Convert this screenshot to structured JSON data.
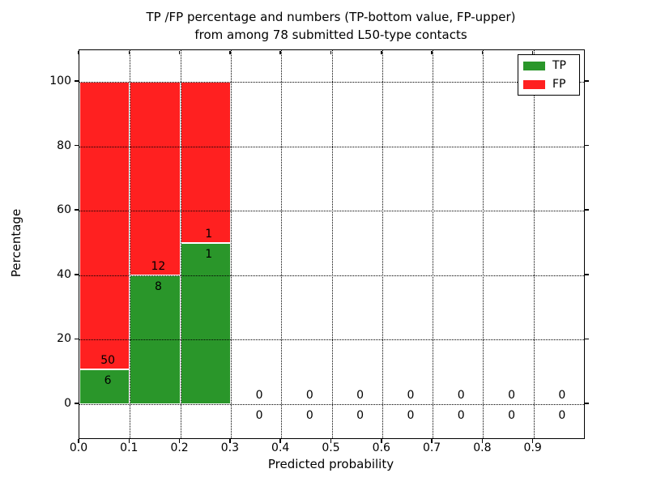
{
  "figure": {
    "title_line1": "TP /FP percentage and numbers (TP-bottom value, FP-upper)",
    "title_line2": "from among 78 submitted L50-type contacts"
  },
  "chart_data": {
    "type": "bar",
    "stacked": true,
    "title": "TP /FP percentage and numbers (TP-bottom value, FP-upper)\nfrom among 78 submitted L50-type contacts",
    "xlabel": "Predicted probability",
    "ylabel": "Percentage",
    "xlim": [
      0.0,
      1.0
    ],
    "ylim": [
      -12,
      110
    ],
    "x_ticks": [
      0.0,
      0.1,
      0.2,
      0.3,
      0.4,
      0.5,
      0.6,
      0.7,
      0.8,
      0.9
    ],
    "x_tick_labels": [
      "0.0",
      "0.1",
      "0.2",
      "0.3",
      "0.4",
      "0.5",
      "0.6",
      "0.7",
      "0.8",
      "0.9"
    ],
    "y_ticks": [
      0,
      20,
      40,
      60,
      80,
      100
    ],
    "y_tick_labels": [
      "0",
      "20",
      "40",
      "60",
      "80",
      "100"
    ],
    "grid": "dotted",
    "grid_color": "#000000",
    "total_contacts": 78,
    "colors": {
      "tp": "#2a962a",
      "fp": "#ff2020"
    },
    "legend": {
      "position": "upper right",
      "entries": [
        {
          "label": "TP",
          "color": "#2a962a"
        },
        {
          "label": "FP",
          "color": "#ff2020"
        }
      ]
    },
    "bins": [
      {
        "x_start": 0.0,
        "x_end": 0.1,
        "tp_count": 6,
        "fp_count": 50,
        "tp_pct": 10.714,
        "fp_pct": 89.286
      },
      {
        "x_start": 0.1,
        "x_end": 0.2,
        "tp_count": 8,
        "fp_count": 12,
        "tp_pct": 40.0,
        "fp_pct": 60.0
      },
      {
        "x_start": 0.2,
        "x_end": 0.3,
        "tp_count": 1,
        "fp_count": 1,
        "tp_pct": 50.0,
        "fp_pct": 50.0
      },
      {
        "x_start": 0.3,
        "x_end": 0.4,
        "tp_count": 0,
        "fp_count": 0,
        "tp_pct": 0,
        "fp_pct": 0
      },
      {
        "x_start": 0.4,
        "x_end": 0.5,
        "tp_count": 0,
        "fp_count": 0,
        "tp_pct": 0,
        "fp_pct": 0
      },
      {
        "x_start": 0.5,
        "x_end": 0.6,
        "tp_count": 0,
        "fp_count": 0,
        "tp_pct": 0,
        "fp_pct": 0
      },
      {
        "x_start": 0.6,
        "x_end": 0.7,
        "tp_count": 0,
        "fp_count": 0,
        "tp_pct": 0,
        "fp_pct": 0
      },
      {
        "x_start": 0.7,
        "x_end": 0.8,
        "tp_count": 0,
        "fp_count": 0,
        "tp_pct": 0,
        "fp_pct": 0
      },
      {
        "x_start": 0.8,
        "x_end": 0.9,
        "tp_count": 0,
        "fp_count": 0,
        "tp_pct": 0,
        "fp_pct": 0
      },
      {
        "x_start": 0.9,
        "x_end": 1.0,
        "tp_count": 0,
        "fp_count": 0,
        "tp_pct": 0,
        "fp_pct": 0
      }
    ]
  }
}
